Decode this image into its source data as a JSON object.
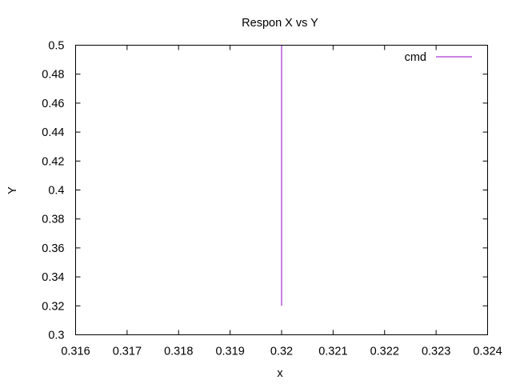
{
  "chart_data": {
    "type": "line",
    "title": "Respon X vs Y",
    "xlabel": "x",
    "ylabel": "Y",
    "xlim": [
      0.316,
      0.324
    ],
    "ylim": [
      0.3,
      0.5
    ],
    "xticks": [
      "0.316",
      "0.317",
      "0.318",
      "0.319",
      "0.32",
      "0.321",
      "0.322",
      "0.323",
      "0.324"
    ],
    "yticks": [
      "0.3",
      "0.32",
      "0.34",
      "0.36",
      "0.38",
      "0.4",
      "0.42",
      "0.44",
      "0.46",
      "0.48",
      "0.5"
    ],
    "grid": false,
    "legend": "top-right",
    "series": [
      {
        "name": "cmd",
        "color": "#9400d3",
        "points": [
          [
            0.32,
            0.32
          ],
          [
            0.32,
            0.5
          ]
        ]
      }
    ]
  }
}
